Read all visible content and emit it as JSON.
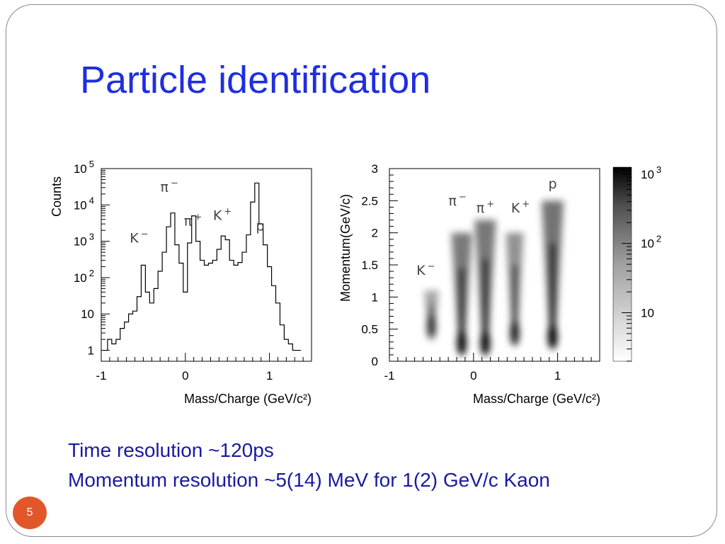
{
  "slide": {
    "title": "Particle identification",
    "caption_lines": [
      "Time resolution ~120ps",
      "Momentum resolution ~5(14) MeV for 1(2) GeV/c Kaon"
    ],
    "page_number": "5",
    "colors": {
      "title": "#1f2ee0",
      "caption": "#1a1aa0",
      "badge": "#e2572a"
    }
  },
  "chart_data": [
    {
      "type": "histogram",
      "xlabel": "Mass/Charge (GeV/c²)",
      "ylabel": "Counts",
      "xlim": [
        -1,
        1.5
      ],
      "ylim": [
        0.5,
        100000
      ],
      "y_scale": "log",
      "x_ticks": [
        "-1",
        "0",
        "1"
      ],
      "y_tick_labels": [
        {
          "base": "1",
          "exp": ""
        },
        {
          "base": "10",
          "exp": ""
        },
        {
          "base": "10",
          "exp": "2"
        },
        {
          "base": "10",
          "exp": "3"
        },
        {
          "base": "10",
          "exp": "4"
        },
        {
          "base": "10",
          "exp": "5"
        }
      ],
      "x": [
        -0.95,
        -0.9,
        -0.85,
        -0.8,
        -0.75,
        -0.7,
        -0.65,
        -0.6,
        -0.55,
        -0.5,
        -0.45,
        -0.4,
        -0.35,
        -0.3,
        -0.25,
        -0.2,
        -0.15,
        -0.1,
        -0.05,
        0.0,
        0.05,
        0.1,
        0.15,
        0.2,
        0.25,
        0.3,
        0.35,
        0.4,
        0.45,
        0.5,
        0.55,
        0.6,
        0.65,
        0.7,
        0.75,
        0.8,
        0.85,
        0.9,
        0.95,
        1.0,
        1.05,
        1.1,
        1.15,
        1.2,
        1.25,
        1.3,
        1.35
      ],
      "y": [
        1,
        2,
        1.5,
        2,
        4,
        6,
        10,
        12,
        30,
        220,
        40,
        20,
        50,
        150,
        500,
        2500,
        6000,
        800,
        250,
        40,
        900,
        5000,
        1000,
        300,
        220,
        250,
        300,
        600,
        1400,
        1100,
        300,
        220,
        260,
        500,
        1500,
        12000,
        40000,
        3000,
        800,
        200,
        60,
        20,
        5,
        2,
        1.5,
        1,
        1
      ],
      "annotations": [
        {
          "base": "K",
          "sup": "−",
          "x": -0.5
        },
        {
          "base": "π",
          "sup": "−",
          "x": -0.14
        },
        {
          "base": "π",
          "sup": "+",
          "x": 0.14
        },
        {
          "base": "K",
          "sup": "+",
          "x": 0.49
        },
        {
          "base": "p",
          "sup": "",
          "x": 0.94
        }
      ]
    },
    {
      "type": "heatmap",
      "xlabel": "Mass/Charge (GeV/c²)",
      "ylabel": "Momentum(GeV/c)",
      "xlim": [
        -1,
        1.5
      ],
      "ylim": [
        0,
        3
      ],
      "x_ticks": [
        "-1",
        "0",
        "1"
      ],
      "y_ticks": [
        "0",
        "0.5",
        "1",
        "1.5",
        "2",
        "2.5",
        "3"
      ],
      "colorbar": {
        "scale": "log",
        "tick_labels": [
          {
            "base": "10",
            "exp": ""
          },
          {
            "base": "10",
            "exp": "2"
          },
          {
            "base": "10",
            "exp": "3"
          }
        ]
      },
      "bands": [
        {
          "particle": "K−",
          "mass": -0.5,
          "p_range": [
            0.4,
            1.1
          ],
          "intensity": 0.35
        },
        {
          "particle": "π−",
          "mass": -0.14,
          "p_range": [
            0.15,
            2.0
          ],
          "intensity": 0.9
        },
        {
          "particle": "π+",
          "mass": 0.14,
          "p_range": [
            0.15,
            2.2
          ],
          "intensity": 0.95
        },
        {
          "particle": "K+",
          "mass": 0.49,
          "p_range": [
            0.3,
            2.0
          ],
          "intensity": 0.6
        },
        {
          "particle": "p",
          "mass": 0.94,
          "p_range": [
            0.25,
            2.5
          ],
          "intensity": 1.0
        }
      ],
      "annotations": [
        {
          "base": "K",
          "sup": "−",
          "x": -0.5
        },
        {
          "base": "π",
          "sup": "−",
          "x": -0.14
        },
        {
          "base": "π",
          "sup": "+",
          "x": 0.14
        },
        {
          "base": "K",
          "sup": "+",
          "x": 0.49
        },
        {
          "base": "p",
          "sup": "",
          "x": 0.94
        }
      ]
    }
  ]
}
